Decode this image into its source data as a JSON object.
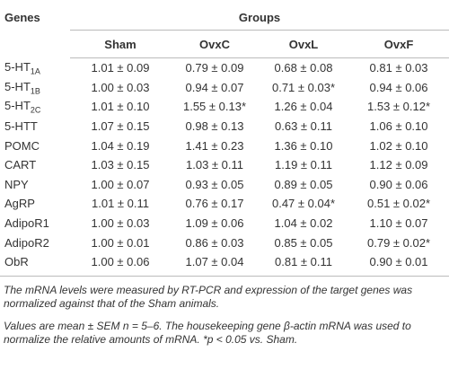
{
  "table": {
    "header": {
      "genes": "Genes",
      "groups": "Groups",
      "columns": [
        "Sham",
        "OvxC",
        "OvxL",
        "OvxF"
      ]
    },
    "rows": [
      {
        "gene": "5-HT",
        "gene_sub": "1A",
        "values": [
          "1.01 ± 0.09",
          "0.79 ± 0.09",
          "0.68 ± 0.08",
          "0.81 ± 0.03"
        ]
      },
      {
        "gene": "5-HT",
        "gene_sub": "1B",
        "values": [
          "1.00 ± 0.03",
          "0.94 ± 0.07",
          "0.71 ± 0.03*",
          "0.94 ± 0.06"
        ]
      },
      {
        "gene": "5-HT",
        "gene_sub": "2C",
        "values": [
          "1.01 ± 0.10",
          "1.55 ± 0.13*",
          "1.26 ± 0.04",
          "1.53 ± 0.12*"
        ]
      },
      {
        "gene": "5-HTT",
        "values": [
          "1.07 ± 0.15",
          "0.98 ± 0.13",
          "0.63 ± 0.11",
          "1.06 ± 0.10"
        ]
      },
      {
        "gene": "POMC",
        "values": [
          "1.04 ± 0.19",
          "1.41 ± 0.23",
          "1.36 ± 0.10",
          "1.02 ± 0.10"
        ]
      },
      {
        "gene": "CART",
        "values": [
          "1.03 ± 0.15",
          "1.03 ± 0.11",
          "1.19 ± 0.11",
          "1.12 ± 0.09"
        ]
      },
      {
        "gene": "NPY",
        "values": [
          "1.00 ± 0.07",
          "0.93 ± 0.05",
          "0.89 ± 0.05",
          "0.90 ± 0.06"
        ]
      },
      {
        "gene": "AgRP",
        "values": [
          "1.01 ± 0.11",
          "0.76 ± 0.17",
          "0.47 ± 0.04*",
          "0.51 ± 0.02*"
        ]
      },
      {
        "gene": "AdipoR1",
        "values": [
          "1.00 ± 0.03",
          "1.09 ± 0.06",
          "1.04 ± 0.02",
          "1.10 ± 0.07"
        ]
      },
      {
        "gene": "AdipoR2",
        "values": [
          "1.00 ± 0.01",
          "0.86 ± 0.03",
          "0.85 ± 0.05",
          "0.79 ± 0.02*"
        ]
      },
      {
        "gene": "ObR",
        "values": [
          "1.00 ± 0.06",
          "1.07 ± 0.04",
          "0.81 ± 0.11",
          "0.90 ± 0.01"
        ]
      }
    ],
    "notes": [
      "The mRNA levels were measured by RT-PCR and expression of the target genes was normalized against that of the Sham animals.",
      "Values are mean ± SEM n = 5–6. The housekeeping gene β-actin mRNA was used to normalize the relative amounts of mRNA. *p < 0.05 vs. Sham."
    ]
  }
}
